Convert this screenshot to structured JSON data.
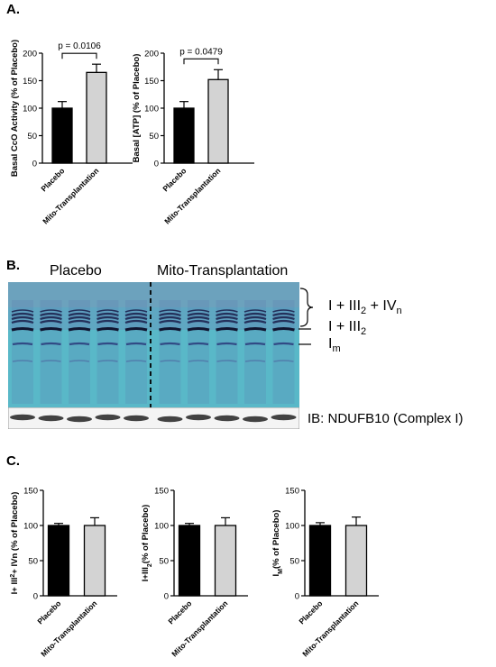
{
  "panels": {
    "a": "A.",
    "b": "B.",
    "c": "C."
  },
  "categories": [
    "Placebo",
    "Mito-Transplantation"
  ],
  "colors": {
    "placebo": "#000000",
    "mito": "#d3d3d3",
    "gel_bg": "#59b8c8"
  },
  "chart_data": [
    {
      "type": "bar",
      "panel": "A",
      "categories": [
        "Placebo",
        "Mito-Transplantation"
      ],
      "values": [
        100,
        165
      ],
      "errors": [
        12,
        15
      ],
      "ylabel": "Basal CcO  Activity (% of Placebo)",
      "ylim": [
        0,
        200
      ],
      "yticks": [
        0,
        50,
        100,
        150,
        200
      ],
      "annotation": "p = 0.0106"
    },
    {
      "type": "bar",
      "panel": "A",
      "categories": [
        "Placebo",
        "Mito-Transplantation"
      ],
      "values": [
        100,
        152
      ],
      "errors": [
        12,
        18
      ],
      "ylabel": "Basal [ATP] (% of Placebo)",
      "ylim": [
        0,
        200
      ],
      "yticks": [
        0,
        50,
        100,
        150,
        200
      ],
      "annotation": "p = 0.0479"
    },
    {
      "type": "bar",
      "panel": "C",
      "categories": [
        "Placebo",
        "Mito-Transplantation"
      ],
      "values": [
        100,
        100
      ],
      "errors": [
        3,
        11
      ],
      "ylabel_parts": [
        [
          "I+ III",
          ""
        ],
        [
          "2",
          "sup"
        ],
        [
          "+ IVn (% of Placebo)",
          ""
        ]
      ],
      "ylim": [
        0,
        150
      ],
      "yticks": [
        0,
        50,
        100,
        150
      ]
    },
    {
      "type": "bar",
      "panel": "C",
      "categories": [
        "Placebo",
        "Mito-Transplantation"
      ],
      "values": [
        100,
        100
      ],
      "errors": [
        3,
        11
      ],
      "ylabel_parts": [
        [
          "I+III",
          ""
        ],
        [
          "2",
          "sub"
        ],
        [
          "(% of Placebo)",
          ""
        ]
      ],
      "ylim": [
        0,
        150
      ],
      "yticks": [
        0,
        50,
        100,
        150
      ]
    },
    {
      "type": "bar",
      "panel": "C",
      "categories": [
        "Placebo",
        "Mito-Transplantation"
      ],
      "values": [
        100,
        100
      ],
      "errors": [
        4,
        12
      ],
      "ylabel_parts": [
        [
          "I",
          ""
        ],
        [
          "M",
          "sub"
        ],
        [
          "(% of Placebo)",
          ""
        ]
      ],
      "ylim": [
        0,
        150
      ],
      "yticks": [
        0,
        50,
        100,
        150
      ]
    }
  ],
  "gel": {
    "group_labels": [
      "Placebo",
      "Mito-Transplantation"
    ],
    "lanes_per_group": 5,
    "band_labels": {
      "top": {
        "main": "I + III",
        "sub1": "2",
        "mid": " + IV",
        "sub2": "n"
      },
      "middle": {
        "main": "I + III",
        "sub1": "2"
      },
      "bottom": {
        "main": "I",
        "sub1": "m"
      }
    },
    "blot_label": "IB: NDUFB10 (Complex I)"
  }
}
